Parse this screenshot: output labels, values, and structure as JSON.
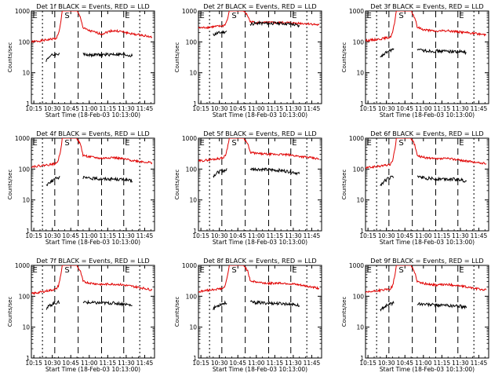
{
  "chart_data": [
    {
      "type": "line",
      "title": "Det 1f BLACK = Events, RED = LLD",
      "xlabel": "Start Time (18-Feb-03 10:13:00)",
      "ylabel": "Counts/sec",
      "y_scale": "log",
      "ylim": [
        1,
        1000
      ],
      "yticks": [
        "1",
        "10",
        "100",
        "1000"
      ],
      "xticks": [
        "10:15",
        "10:30",
        "10:45",
        "11:00",
        "11:15",
        "11:30",
        "11:45"
      ],
      "xlim": [
        "10:13",
        "11:53"
      ],
      "markers": [
        "E",
        "S",
        "E"
      ],
      "series": [
        {
          "name": "RED",
          "color": "#e00000",
          "x": [
            "10:13",
            "10:22",
            "10:33",
            "10:35",
            "10:37",
            "10:38",
            "10:39",
            "10:50",
            "10:53",
            "10:55",
            "11:00",
            "11:10",
            "11:18",
            "11:25",
            "11:35",
            "11:45",
            "11:51"
          ],
          "values": [
            100,
            110,
            130,
            180,
            450,
            1000,
            1000,
            1000,
            600,
            280,
            230,
            180,
            230,
            220,
            180,
            160,
            140
          ]
        },
        {
          "name": "BLACK",
          "color": "#000000",
          "x": [
            "10:25",
            "10:28",
            "10:31",
            "10:34",
            "10:36",
            "10:55",
            "11:00",
            "11:10",
            "11:20",
            "11:30",
            "11:35"
          ],
          "values": [
            25,
            35,
            38,
            40,
            42,
            40,
            38,
            38,
            40,
            38,
            35
          ]
        }
      ]
    },
    {
      "type": "line",
      "title": "Det 2f BLACK = Events, RED = LLD",
      "xlabel": "Start Time (18-Feb-03 10:13:00)",
      "ylabel": "Counts/sec",
      "y_scale": "log",
      "ylim": [
        1,
        1000
      ],
      "yticks": [
        "1",
        "10",
        "100",
        "1000"
      ],
      "xticks": [
        "10:15",
        "10:30",
        "10:45",
        "11:00",
        "11:15",
        "11:30",
        "11:45"
      ],
      "xlim": [
        "10:13",
        "11:53"
      ],
      "markers": [
        "E",
        "S",
        "E"
      ],
      "series": [
        {
          "name": "RED",
          "color": "#e00000",
          "x": [
            "10:13",
            "10:22",
            "10:33",
            "10:35",
            "10:37",
            "10:38",
            "10:39",
            "10:50",
            "10:53",
            "10:55",
            "11:00",
            "11:10",
            "11:18",
            "11:25",
            "11:35",
            "11:45",
            "11:51"
          ],
          "values": [
            280,
            300,
            330,
            380,
            600,
            1000,
            1000,
            1000,
            700,
            450,
            420,
            420,
            420,
            420,
            400,
            380,
            350
          ]
        },
        {
          "name": "BLACK",
          "color": "#000000",
          "x": [
            "10:25",
            "10:28",
            "10:31",
            "10:34",
            "10:36",
            "10:55",
            "11:00",
            "11:10",
            "11:20",
            "11:30",
            "11:35"
          ],
          "values": [
            170,
            190,
            200,
            210,
            220,
            380,
            400,
            400,
            400,
            370,
            320
          ]
        }
      ]
    },
    {
      "type": "line",
      "title": "Det 3f BLACK = Events, RED = LLD",
      "xlabel": "Start Time (18-Feb-03 10:13:00)",
      "ylabel": "Counts/sec",
      "y_scale": "log",
      "ylim": [
        1,
        1000
      ],
      "yticks": [
        "1",
        "10",
        "100",
        "1000"
      ],
      "xticks": [
        "10:15",
        "10:30",
        "10:45",
        "11:00",
        "11:15",
        "11:30",
        "11:45"
      ],
      "xlim": [
        "10:13",
        "11:53"
      ],
      "markers": [
        "E",
        "S",
        "E"
      ],
      "series": [
        {
          "name": "RED",
          "color": "#e00000",
          "x": [
            "10:13",
            "10:22",
            "10:33",
            "10:35",
            "10:37",
            "10:38",
            "10:39",
            "10:50",
            "10:53",
            "10:55",
            "11:00",
            "11:10",
            "11:18",
            "11:25",
            "11:35",
            "11:45",
            "11:51"
          ],
          "values": [
            110,
            120,
            140,
            200,
            500,
            1000,
            1000,
            1000,
            600,
            300,
            250,
            220,
            230,
            220,
            200,
            180,
            170
          ]
        },
        {
          "name": "BLACK",
          "color": "#000000",
          "x": [
            "10:25",
            "10:28",
            "10:31",
            "10:34",
            "10:36",
            "10:55",
            "11:00",
            "11:10",
            "11:20",
            "11:30",
            "11:35"
          ],
          "values": [
            30,
            40,
            48,
            55,
            58,
            55,
            52,
            50,
            50,
            48,
            45
          ]
        }
      ]
    },
    {
      "type": "line",
      "title": "Det 4f BLACK = Events, RED = LLD",
      "xlabel": "Start Time (18-Feb-03 10:13:00)",
      "ylabel": "Counts/sec",
      "y_scale": "log",
      "ylim": [
        1,
        1000
      ],
      "yticks": [
        "1",
        "10",
        "100",
        "1000"
      ],
      "xticks": [
        "10:15",
        "10:30",
        "10:45",
        "11:00",
        "11:15",
        "11:30",
        "11:45"
      ],
      "xlim": [
        "10:13",
        "11:53"
      ],
      "markers": [
        "E",
        "S",
        "E"
      ],
      "series": [
        {
          "name": "RED",
          "color": "#e00000",
          "x": [
            "10:13",
            "10:22",
            "10:33",
            "10:35",
            "10:37",
            "10:38",
            "10:39",
            "10:50",
            "10:53",
            "10:55",
            "11:00",
            "11:10",
            "11:18",
            "11:25",
            "11:35",
            "11:45",
            "11:51"
          ],
          "values": [
            120,
            130,
            150,
            200,
            450,
            1000,
            1000,
            1000,
            600,
            280,
            250,
            220,
            240,
            220,
            190,
            170,
            160
          ]
        },
        {
          "name": "BLACK",
          "color": "#000000",
          "x": [
            "10:25",
            "10:28",
            "10:31",
            "10:34",
            "10:36",
            "10:55",
            "11:00",
            "11:10",
            "11:20",
            "11:30",
            "11:35"
          ],
          "values": [
            30,
            38,
            45,
            52,
            55,
            52,
            50,
            48,
            48,
            45,
            40
          ]
        }
      ]
    },
    {
      "type": "line",
      "title": "Det 5f BLACK = Events, RED = LLD",
      "xlabel": "Start Time (18-Feb-03 10:13:00)",
      "ylabel": "Counts/sec",
      "y_scale": "log",
      "ylim": [
        1,
        1000
      ],
      "yticks": [
        "1",
        "10",
        "100",
        "1000"
      ],
      "xticks": [
        "10:15",
        "10:30",
        "10:45",
        "11:00",
        "11:15",
        "11:30",
        "11:45"
      ],
      "xlim": [
        "10:13",
        "11:53"
      ],
      "markers": [
        "E",
        "S",
        "E"
      ],
      "series": [
        {
          "name": "RED",
          "color": "#e00000",
          "x": [
            "10:13",
            "10:22",
            "10:33",
            "10:35",
            "10:37",
            "10:38",
            "10:39",
            "10:50",
            "10:53",
            "10:55",
            "11:00",
            "11:10",
            "11:18",
            "11:25",
            "11:35",
            "11:45",
            "11:51"
          ],
          "values": [
            180,
            200,
            230,
            280,
            600,
            1000,
            1000,
            1000,
            650,
            350,
            320,
            300,
            300,
            290,
            260,
            230,
            210
          ]
        },
        {
          "name": "BLACK",
          "color": "#000000",
          "x": [
            "10:25",
            "10:28",
            "10:31",
            "10:34",
            "10:36",
            "10:55",
            "11:00",
            "11:10",
            "11:20",
            "11:30",
            "11:35"
          ],
          "values": [
            60,
            75,
            85,
            90,
            95,
            100,
            100,
            95,
            90,
            80,
            70
          ]
        }
      ]
    },
    {
      "type": "line",
      "title": "Det 6f BLACK = Events, RED = LLD",
      "xlabel": "Start Time (18-Feb-03 10:13:00)",
      "ylabel": "Counts/sec",
      "y_scale": "log",
      "ylim": [
        1,
        1000
      ],
      "yticks": [
        "1",
        "10",
        "100",
        "1000"
      ],
      "xticks": [
        "10:15",
        "10:30",
        "10:45",
        "11:00",
        "11:15",
        "11:30",
        "11:45"
      ],
      "xlim": [
        "10:13",
        "11:53"
      ],
      "markers": [
        "E",
        "S",
        "E"
      ],
      "series": [
        {
          "name": "RED",
          "color": "#e00000",
          "x": [
            "10:13",
            "10:22",
            "10:33",
            "10:35",
            "10:37",
            "10:38",
            "10:39",
            "10:50",
            "10:53",
            "10:55",
            "11:00",
            "11:10",
            "11:18",
            "11:25",
            "11:35",
            "11:45",
            "11:51"
          ],
          "values": [
            110,
            120,
            140,
            190,
            450,
            1000,
            1000,
            1000,
            600,
            270,
            240,
            210,
            220,
            210,
            180,
            160,
            150
          ]
        },
        {
          "name": "BLACK",
          "color": "#000000",
          "x": [
            "10:25",
            "10:28",
            "10:31",
            "10:34",
            "10:36",
            "10:55",
            "11:00",
            "11:10",
            "11:20",
            "11:30",
            "11:35"
          ],
          "values": [
            30,
            40,
            48,
            55,
            58,
            55,
            52,
            48,
            48,
            45,
            40
          ]
        }
      ]
    },
    {
      "type": "line",
      "title": "Det 7f BLACK = Events, RED = LLD",
      "xlabel": "Start Time (18-Feb-03 10:13:00)",
      "ylabel": "Counts/sec",
      "y_scale": "log",
      "ylim": [
        1,
        1000
      ],
      "yticks": [
        "1",
        "10",
        "100",
        "1000"
      ],
      "xticks": [
        "10:15",
        "10:30",
        "10:45",
        "11:00",
        "11:15",
        "11:30",
        "11:45"
      ],
      "xlim": [
        "10:13",
        "11:53"
      ],
      "markers": [
        "E",
        "S",
        "E"
      ],
      "series": [
        {
          "name": "RED",
          "color": "#e00000",
          "x": [
            "10:13",
            "10:22",
            "10:33",
            "10:35",
            "10:37",
            "10:38",
            "10:39",
            "10:50",
            "10:53",
            "10:55",
            "11:00",
            "11:10",
            "11:18",
            "11:25",
            "11:35",
            "11:45",
            "11:51"
          ],
          "values": [
            120,
            140,
            170,
            220,
            500,
            1000,
            1000,
            1000,
            600,
            300,
            270,
            240,
            250,
            240,
            210,
            180,
            160
          ]
        },
        {
          "name": "BLACK",
          "color": "#000000",
          "x": [
            "10:25",
            "10:28",
            "10:31",
            "10:34",
            "10:36",
            "10:55",
            "11:00",
            "11:10",
            "11:20",
            "11:30",
            "11:35"
          ],
          "values": [
            40,
            50,
            58,
            62,
            65,
            65,
            62,
            60,
            60,
            55,
            50
          ]
        }
      ]
    },
    {
      "type": "line",
      "title": "Det 8f BLACK = Events, RED = LLD",
      "xlabel": "Start Time (18-Feb-03 10:13:00)",
      "ylabel": "Counts/sec",
      "y_scale": "log",
      "ylim": [
        1,
        1000
      ],
      "yticks": [
        "1",
        "10",
        "100",
        "1000"
      ],
      "xticks": [
        "10:15",
        "10:30",
        "10:45",
        "11:00",
        "11:15",
        "11:30",
        "11:45"
      ],
      "xlim": [
        "10:13",
        "11:53"
      ],
      "markers": [
        "E",
        "S",
        "E"
      ],
      "series": [
        {
          "name": "RED",
          "color": "#e00000",
          "x": [
            "10:13",
            "10:22",
            "10:33",
            "10:35",
            "10:37",
            "10:38",
            "10:39",
            "10:50",
            "10:53",
            "10:55",
            "11:00",
            "11:10",
            "11:18",
            "11:25",
            "11:35",
            "11:45",
            "11:51"
          ],
          "values": [
            140,
            160,
            180,
            230,
            550,
            1000,
            1000,
            1000,
            650,
            320,
            290,
            260,
            270,
            260,
            230,
            200,
            180
          ]
        },
        {
          "name": "BLACK",
          "color": "#000000",
          "x": [
            "10:25",
            "10:28",
            "10:31",
            "10:34",
            "10:36",
            "10:55",
            "11:00",
            "11:10",
            "11:20",
            "11:30",
            "11:35"
          ],
          "values": [
            40,
            48,
            55,
            60,
            62,
            65,
            62,
            60,
            58,
            55,
            50
          ]
        }
      ]
    },
    {
      "type": "line",
      "title": "Det 9f BLACK = Events, RED = LLD",
      "xlabel": "Start Time (18-Feb-03 10:13:00)",
      "ylabel": "Counts/sec",
      "y_scale": "log",
      "ylim": [
        1,
        1000
      ],
      "yticks": [
        "1",
        "10",
        "100",
        "1000"
      ],
      "xticks": [
        "10:15",
        "10:30",
        "10:45",
        "11:00",
        "11:15",
        "11:30",
        "11:45"
      ],
      "xlim": [
        "10:13",
        "11:53"
      ],
      "markers": [
        "E",
        "S",
        "E"
      ],
      "series": [
        {
          "name": "RED",
          "color": "#e00000",
          "x": [
            "10:13",
            "10:22",
            "10:33",
            "10:35",
            "10:37",
            "10:38",
            "10:39",
            "10:50",
            "10:53",
            "10:55",
            "11:00",
            "11:10",
            "11:18",
            "11:25",
            "11:35",
            "11:45",
            "11:51"
          ],
          "values": [
            130,
            150,
            170,
            220,
            500,
            1000,
            1000,
            1000,
            600,
            300,
            260,
            230,
            240,
            230,
            200,
            170,
            160
          ]
        },
        {
          "name": "BLACK",
          "color": "#000000",
          "x": [
            "10:25",
            "10:28",
            "10:31",
            "10:34",
            "10:36",
            "10:55",
            "11:00",
            "11:10",
            "11:20",
            "11:30",
            "11:35"
          ],
          "values": [
            35,
            45,
            52,
            58,
            60,
            58,
            55,
            52,
            50,
            48,
            42
          ]
        }
      ]
    }
  ]
}
